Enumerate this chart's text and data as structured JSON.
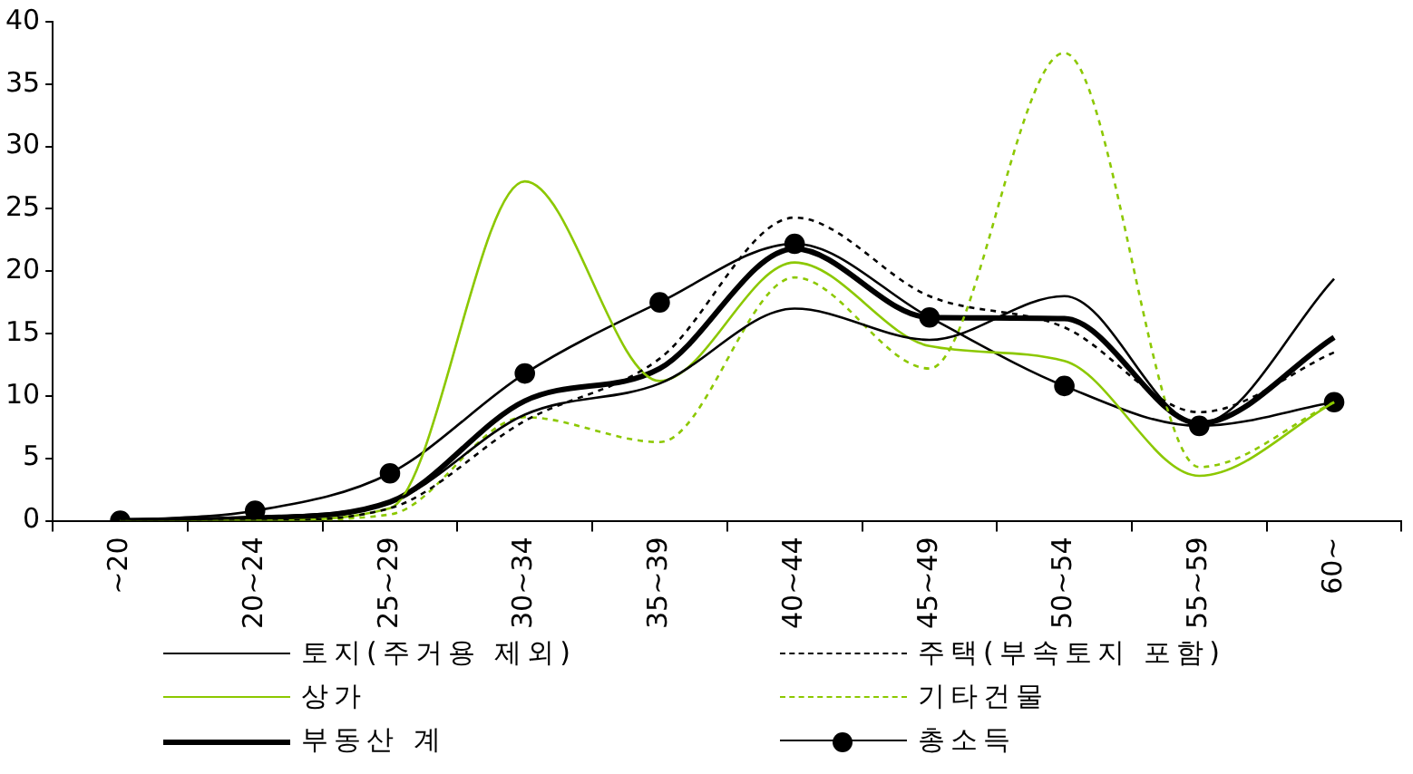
{
  "chart_data": {
    "type": "line",
    "categories": [
      "~20",
      "20~24",
      "25~29",
      "30~34",
      "35~39",
      "40~44",
      "45~49",
      "50~54",
      "55~59",
      "60~"
    ],
    "series": [
      {
        "name": "토지(주거용 제외)",
        "color": "#000000",
        "line_style": "solid",
        "marker": "none",
        "values": [
          0,
          0.3,
          1.5,
          8.5,
          11,
          17,
          14.5,
          18,
          7.8,
          19.4
        ]
      },
      {
        "name": "주택(부속토지 포함)",
        "color": "#000000",
        "line_style": "dashed",
        "marker": "none",
        "values": [
          0,
          0,
          1,
          8,
          13,
          24.3,
          18,
          15.5,
          8.7,
          13.5
        ]
      },
      {
        "name": "상가",
        "color": "#8cc800",
        "line_style": "solid",
        "marker": "none",
        "values": [
          0,
          0,
          1,
          27.2,
          11.2,
          20.7,
          14,
          12.8,
          3.6,
          9.5
        ]
      },
      {
        "name": "기타건물",
        "color": "#8cc800",
        "line_style": "dashed",
        "marker": "none",
        "values": [
          0,
          0,
          0.5,
          8.3,
          6.3,
          19.5,
          12.2,
          37.5,
          4.3,
          9.5
        ]
      },
      {
        "name": "부동산 계",
        "color": "#000000",
        "line_style": "solid",
        "marker": "none",
        "values": [
          0,
          0.2,
          1.5,
          9.6,
          12.2,
          21.8,
          16.3,
          16.2,
          7.8,
          14.7
        ]
      },
      {
        "name": "총소득",
        "color": "#000000",
        "line_style": "solid",
        "marker": "circle",
        "values": [
          0,
          0.8,
          3.8,
          11.8,
          17.5,
          22.2,
          16.3,
          10.8,
          7.6,
          9.5
        ]
      }
    ],
    "ylim": [
      0,
      40
    ],
    "yticks": [
      0,
      5,
      10,
      15,
      20,
      25,
      30,
      35,
      40
    ],
    "grid": false,
    "legend": "bottom"
  }
}
